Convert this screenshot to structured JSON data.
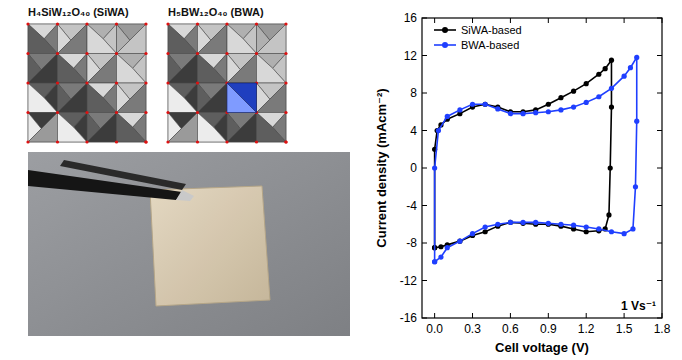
{
  "figure": {
    "structure_labels": [
      "H₄SiW₁₂O₄₀ (SiWA)",
      "H₅BW₁₂O₄₀ (BWA)"
    ]
  },
  "chart_data": {
    "type": "line",
    "xlabel": "Cell voltage (V)",
    "ylabel": "Current density (mAcm⁻²)",
    "annotation": "1 Vs⁻¹",
    "xlim": [
      -0.1,
      1.8
    ],
    "ylim": [
      -16,
      16
    ],
    "xticks": [
      {
        "value": 0,
        "label": "0.0"
      },
      0.3,
      0.6,
      0.9,
      1.2,
      1.5,
      1.8
    ],
    "yticks": [
      -16,
      -12,
      -8,
      -4,
      0,
      4,
      8,
      12,
      16
    ],
    "grid": false,
    "legend": "upper-left",
    "series": [
      {
        "name": "SiWA-based",
        "color": "#000000",
        "marker": "circle",
        "x": [
          0,
          0,
          0.02,
          0.05,
          0.1,
          0.2,
          0.3,
          0.4,
          0.5,
          0.6,
          0.7,
          0.8,
          0.9,
          1.0,
          1.1,
          1.2,
          1.3,
          1.35,
          1.4,
          1.4,
          1.39,
          1.38,
          1.35,
          1.3,
          1.2,
          1.1,
          1.0,
          0.9,
          0.8,
          0.7,
          0.6,
          0.5,
          0.4,
          0.3,
          0.2,
          0.1,
          0.05,
          0
        ],
        "values": [
          -8.5,
          2,
          4,
          4.6,
          5.2,
          5.8,
          6.5,
          6.8,
          6.5,
          6.0,
          6.0,
          6.2,
          6.8,
          7.5,
          8.2,
          9.0,
          10.0,
          10.6,
          11.5,
          6.5,
          0,
          -5,
          -6.5,
          -6.7,
          -6.8,
          -6.5,
          -6.2,
          -6.0,
          -6.0,
          -5.9,
          -5.8,
          -6.2,
          -6.8,
          -7.2,
          -7.8,
          -8.2,
          -8.4,
          -8.5
        ]
      },
      {
        "name": "BWA-based",
        "color": "#1f3fff",
        "marker": "circle",
        "x": [
          0,
          0,
          0.03,
          0.1,
          0.2,
          0.3,
          0.4,
          0.5,
          0.6,
          0.7,
          0.8,
          0.9,
          1.0,
          1.1,
          1.2,
          1.3,
          1.4,
          1.5,
          1.55,
          1.6,
          1.6,
          1.59,
          1.57,
          1.5,
          1.4,
          1.3,
          1.2,
          1.1,
          1.0,
          0.9,
          0.8,
          0.7,
          0.6,
          0.5,
          0.4,
          0.3,
          0.2,
          0.1,
          0.05,
          0
        ],
        "values": [
          -10,
          0,
          4,
          5.5,
          6.2,
          6.8,
          6.8,
          6.3,
          5.8,
          5.8,
          5.9,
          6.0,
          6.2,
          6.5,
          7.0,
          7.6,
          8.5,
          9.8,
          10.7,
          11.8,
          5,
          -2,
          -6.5,
          -7,
          -6.8,
          -6.5,
          -6.3,
          -6.1,
          -6.0,
          -5.9,
          -5.8,
          -5.8,
          -5.8,
          -6.0,
          -6.3,
          -7.0,
          -7.8,
          -8.5,
          -9.5,
          -10
        ]
      }
    ]
  }
}
